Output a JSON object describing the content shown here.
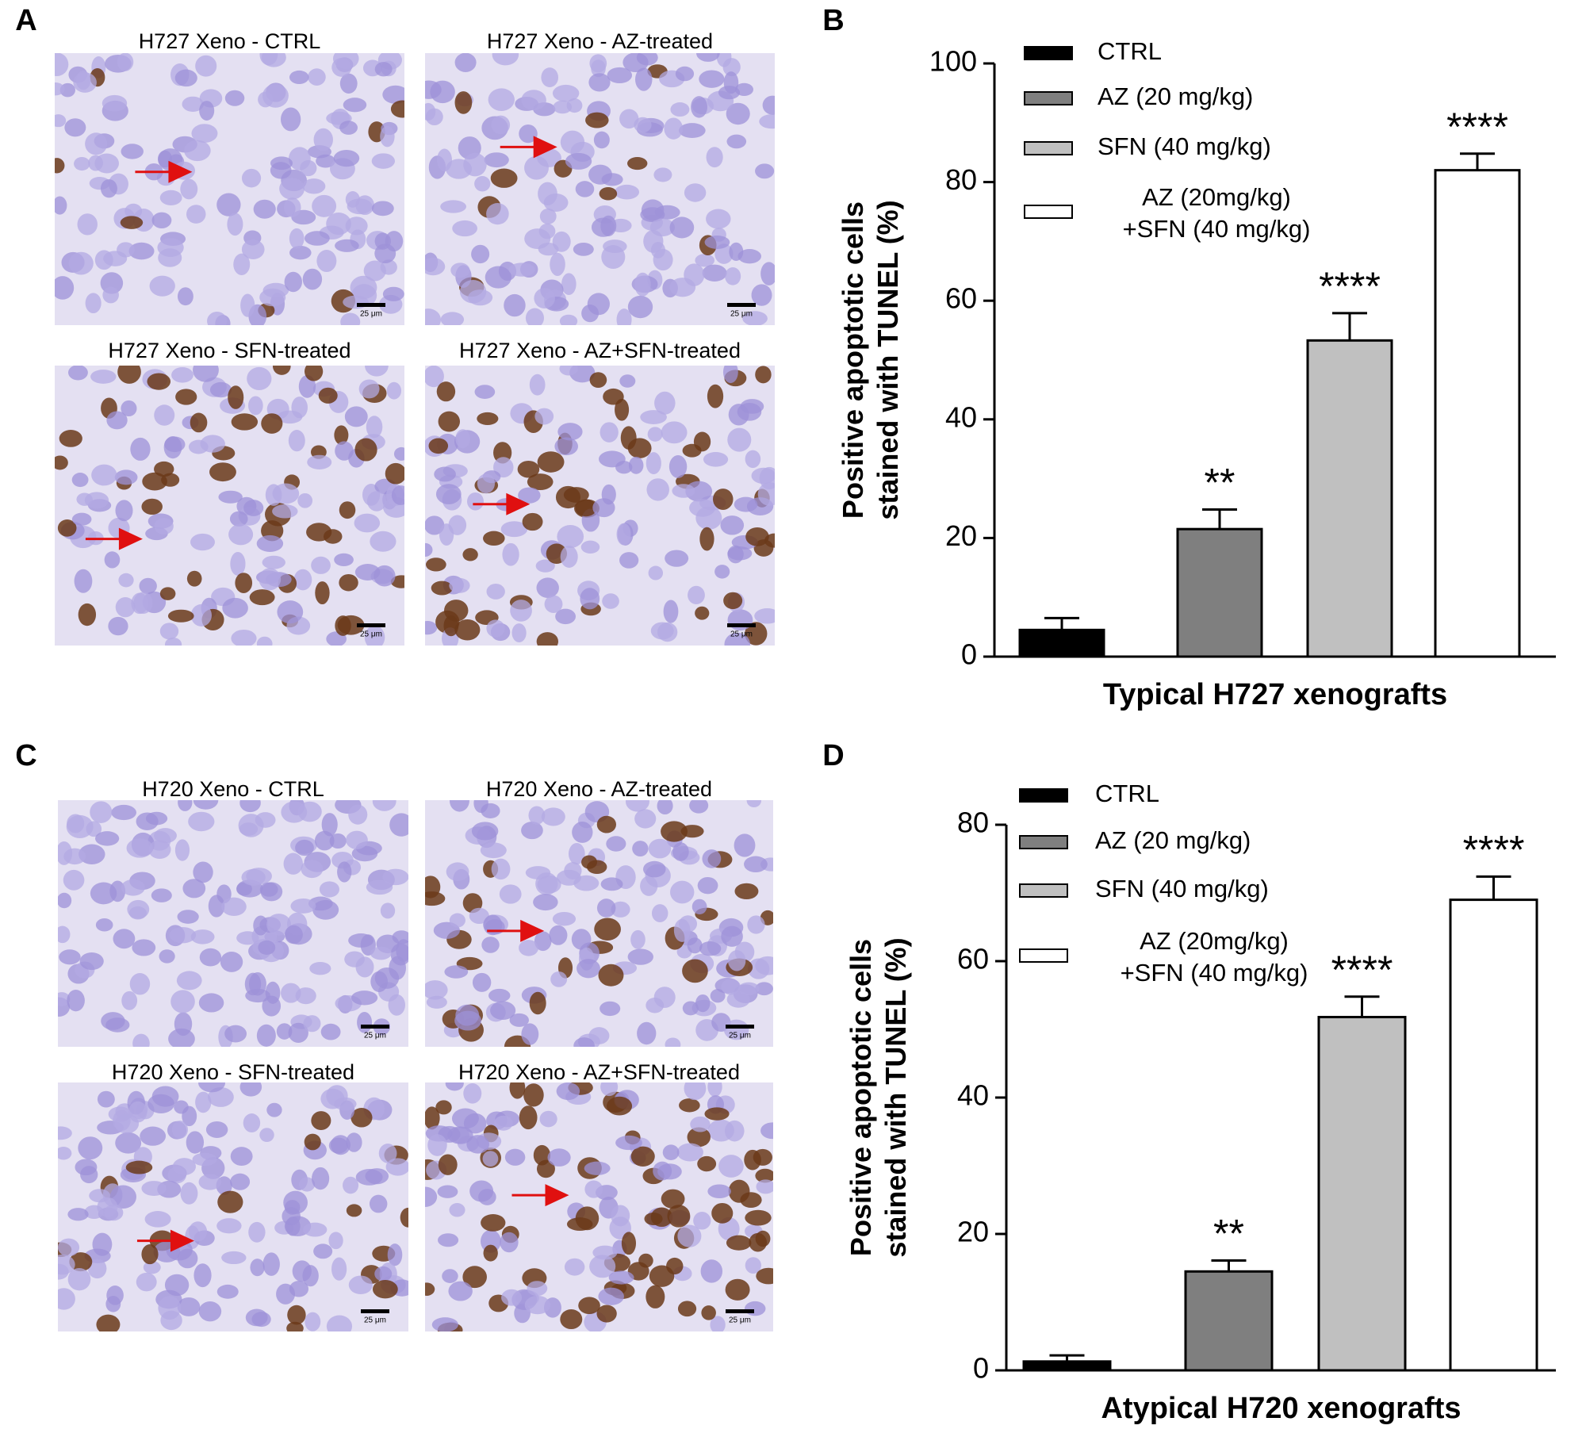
{
  "panels": [
    {
      "label": "A",
      "images": [
        "H727 Xeno - CTRL",
        "H727 Xeno - AZ-treated",
        "H727 Xeno - SFN-treated",
        "H727 Xeno - AZ+SFN-treated"
      ]
    },
    {
      "label": "C",
      "images": [
        "H720 Xeno - CTRL",
        "H720 Xeno - AZ-treated",
        "H720 Xeno - SFN-treated",
        "H720 Xeno - AZ+SFN-treated"
      ]
    }
  ],
  "scale_bar": "25 μm",
  "chart_data": [
    {
      "type": "bar",
      "panel": "B",
      "xlabel": "Typical H727 xenografts",
      "ylabel": "Positive apoptotic cells\nstained with TUNEL (%)",
      "categories": [
        "CTRL",
        "AZ (20 mg/kg)",
        "SFN (40 mg/kg)",
        "AZ (20mg/kg)\n+SFN (40 mg/kg)"
      ],
      "values": [
        4.5,
        21.5,
        53.3,
        82
      ],
      "errors": [
        2,
        3.3,
        4.6,
        2.8
      ],
      "annotations": [
        null,
        "**",
        "****",
        "****"
      ],
      "colors": [
        "#000000",
        "#7f7f7f",
        "#c0c0c0",
        "#ffffff"
      ],
      "ylim": [
        0,
        100
      ],
      "yticks": [
        0,
        20,
        40,
        60,
        80,
        100
      ]
    },
    {
      "type": "bar",
      "panel": "D",
      "xlabel": "Atypical H720 xenografts",
      "ylabel": "Positive apoptotic cells\nstained with TUNEL (%)",
      "categories": [
        "CTRL",
        "AZ (20 mg/kg)",
        "SFN (40 mg/kg)",
        "AZ (20mg/kg)\n+SFN (40 mg/kg)"
      ],
      "values": [
        1.3,
        14.5,
        51.8,
        69
      ],
      "errors": [
        0.9,
        1.6,
        3,
        3.4
      ],
      "annotations": [
        null,
        "**",
        "****",
        "****"
      ],
      "colors": [
        "#000000",
        "#7f7f7f",
        "#c0c0c0",
        "#ffffff"
      ],
      "ylim": [
        0,
        80
      ],
      "yticks": [
        0,
        20,
        40,
        60,
        80
      ]
    }
  ]
}
